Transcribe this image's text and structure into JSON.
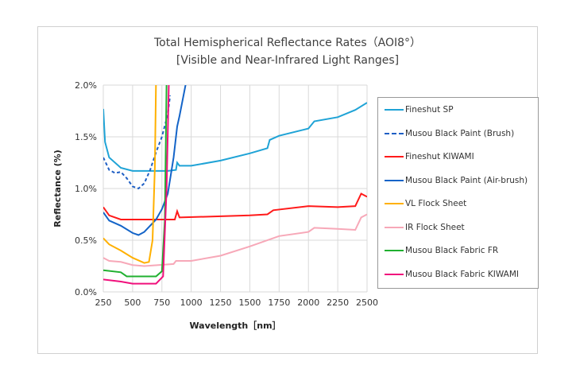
{
  "chart_data": {
    "type": "line",
    "title": "Total Hemispherical Reflectance Rates（AOI8°）",
    "subtitle": "[Visible and Near-Infrared Light Ranges]",
    "xlabel": "Wavelength［nm］",
    "ylabel": "Reflectance (%)",
    "xlim": [
      250,
      2500
    ],
    "ylim": [
      0,
      2.0
    ],
    "xticks": [
      "250",
      "500",
      "750",
      "1000",
      "1250",
      "1500",
      "1750",
      "2000",
      "2250",
      "2500"
    ],
    "yticks": [
      "0.0%",
      "0.5%",
      "1.0%",
      "1.5%",
      "2.0%"
    ],
    "grid": true,
    "legend": "right",
    "series": [
      {
        "name": "Fineshut SP",
        "color": "#1fa3d6",
        "dash": false,
        "x": [
          250,
          265,
          300,
          400,
          500,
          600,
          700,
          800,
          870,
          880,
          900,
          1000,
          1250,
          1500,
          1650,
          1670,
          1750,
          2000,
          2050,
          2250,
          2400,
          2500
        ],
        "y": [
          1.77,
          1.45,
          1.3,
          1.2,
          1.17,
          1.17,
          1.17,
          1.17,
          1.18,
          1.25,
          1.22,
          1.22,
          1.27,
          1.34,
          1.39,
          1.47,
          1.51,
          1.58,
          1.65,
          1.69,
          1.76,
          1.83
        ]
      },
      {
        "name": "Musou Black Paint (Brush)",
        "color": "#1f5fc4",
        "dash": true,
        "x": [
          250,
          300,
          350,
          400,
          450,
          500,
          550,
          600,
          650,
          700,
          750,
          800,
          820
        ],
        "y": [
          1.3,
          1.18,
          1.15,
          1.16,
          1.1,
          1.02,
          1.0,
          1.05,
          1.18,
          1.35,
          1.5,
          1.72,
          1.9
        ]
      },
      {
        "name": "Fineshut KIWAMI",
        "color": "#ff1a1a",
        "dash": false,
        "x": [
          250,
          300,
          400,
          600,
          860,
          880,
          900,
          1500,
          1650,
          1700,
          2000,
          2250,
          2400,
          2450,
          2500
        ],
        "y": [
          0.82,
          0.74,
          0.7,
          0.7,
          0.7,
          0.78,
          0.72,
          0.74,
          0.75,
          0.79,
          0.83,
          0.82,
          0.83,
          0.95,
          0.92
        ]
      },
      {
        "name": "Musou Black Paint (Air-brush)",
        "color": "#1464c8",
        "dash": false,
        "x": [
          250,
          300,
          400,
          500,
          550,
          600,
          700,
          750,
          800,
          850,
          880,
          900,
          960
        ],
        "y": [
          0.77,
          0.69,
          0.64,
          0.57,
          0.55,
          0.58,
          0.7,
          0.8,
          0.95,
          1.3,
          1.6,
          1.7,
          2.05
        ]
      },
      {
        "name": "VL Flock Sheet",
        "color": "#ffb000",
        "dash": false,
        "x": [
          250,
          300,
          400,
          500,
          600,
          640,
          670,
          690,
          700
        ],
        "y": [
          0.52,
          0.46,
          0.4,
          0.33,
          0.28,
          0.29,
          0.5,
          1.2,
          2.05
        ]
      },
      {
        "name": "IR Flock Sheet",
        "color": "#f7a8b8",
        "dash": false,
        "x": [
          250,
          300,
          400,
          500,
          600,
          850,
          870,
          1000,
          1250,
          1500,
          1750,
          2000,
          2050,
          2250,
          2400,
          2450,
          2500
        ],
        "y": [
          0.33,
          0.3,
          0.29,
          0.26,
          0.25,
          0.27,
          0.3,
          0.3,
          0.35,
          0.44,
          0.54,
          0.58,
          0.62,
          0.61,
          0.6,
          0.72,
          0.75
        ]
      },
      {
        "name": "Musou Black Fabric FR",
        "color": "#20b030",
        "dash": false,
        "x": [
          250,
          400,
          450,
          700,
          750,
          775,
          790
        ],
        "y": [
          0.21,
          0.19,
          0.15,
          0.15,
          0.2,
          0.7,
          2.05
        ]
      },
      {
        "name": "Musou Black Fabric KIWAMI",
        "color": "#f0107c",
        "dash": false,
        "x": [
          250,
          400,
          500,
          700,
          760,
          790,
          810
        ],
        "y": [
          0.12,
          0.1,
          0.08,
          0.08,
          0.15,
          1.0,
          2.05
        ]
      }
    ]
  }
}
